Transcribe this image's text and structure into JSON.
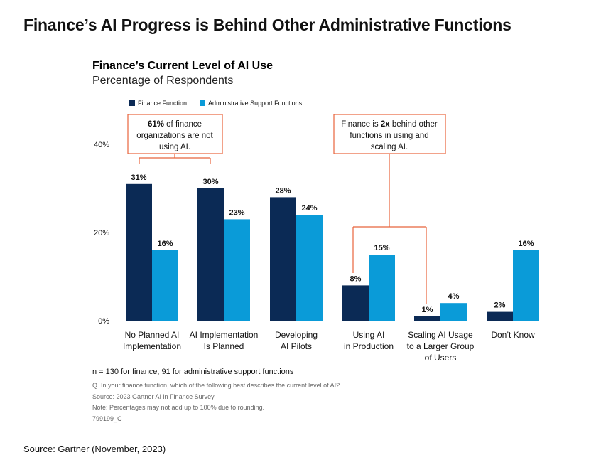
{
  "page_title": "Finance’s AI Progress is Behind Other Administrative Functions",
  "chart_data": {
    "type": "bar",
    "title": "Finance’s Current Level of AI Use",
    "subtitle": "Percentage of Respondents",
    "categories": [
      [
        "No Planned AI",
        "Implementation"
      ],
      [
        "AI Implementation",
        "Is Planned"
      ],
      [
        "Developing",
        "AI Pilots"
      ],
      [
        "Using AI",
        "in Production"
      ],
      [
        "Scaling AI Usage",
        "to a Larger Group",
        "of Users"
      ],
      [
        "Don’t Know"
      ]
    ],
    "series": [
      {
        "name": "Finance Function",
        "color": "#0b2a55",
        "values": [
          31,
          30,
          28,
          8,
          1,
          2
        ]
      },
      {
        "name": "Administrative Support Functions",
        "color": "#0a9bd8",
        "values": [
          16,
          23,
          24,
          15,
          4,
          16
        ]
      }
    ],
    "value_labels": [
      [
        "31%",
        "30%",
        "28%",
        "8%",
        "1%",
        "2%"
      ],
      [
        "16%",
        "23%",
        "24%",
        "15%",
        "4%",
        "16%"
      ]
    ],
    "yticks": [
      "0%",
      "20%",
      "40%"
    ],
    "ytick_values": [
      0,
      20,
      40
    ],
    "ylim": [
      0,
      40
    ],
    "legend_position": "top-left",
    "grid": false,
    "annotation_color": "#e8643c",
    "annotations": [
      {
        "bold": "61%",
        "lines": [
          " of finance",
          "organizations are not",
          "using AI."
        ]
      },
      {
        "bold": "2x",
        "lines": [
          "Finance is ",
          " behind other",
          "functions in using and",
          "scaling AI."
        ]
      }
    ]
  },
  "notes": {
    "n": "n = 130 for finance, 91 for administrative support functions",
    "question": "Q. In your finance function, which of the following best describes the current level of AI?",
    "survey": "Source: 2023 Gartner AI in Finance Survey",
    "rounding": "Note: Percentages may not add up to 100% due to rounding.",
    "code": "799199_C"
  },
  "source": "Source: Gartner (November, 2023)"
}
